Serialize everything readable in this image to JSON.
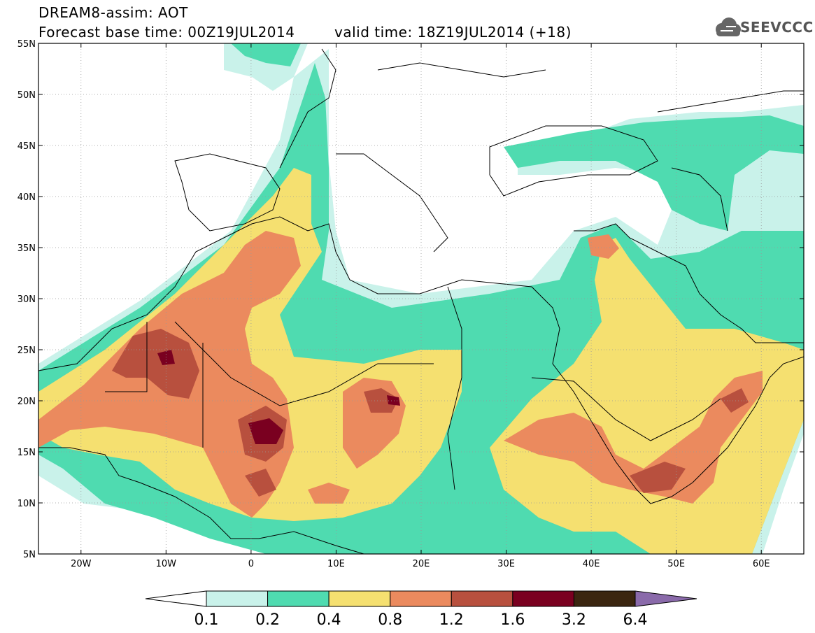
{
  "title": {
    "line1": "DREAM8-assim: AOT",
    "line2": "Forecast base time: 00Z19JUL2014",
    "valid": "valid time: 18Z19JUL2014 (+18)"
  },
  "logo": {
    "text": "SEEVCCC",
    "icon": "cloud-icon"
  },
  "axes": {
    "lat_labels": [
      "55N",
      "50N",
      "45N",
      "40N",
      "35N",
      "30N",
      "25N",
      "20N",
      "15N",
      "10N",
      "5N"
    ],
    "lon_labels": [
      "20W",
      "10W",
      "0",
      "10E",
      "20E",
      "30E",
      "40E",
      "50E",
      "60E"
    ],
    "lat_range": [
      5,
      55
    ],
    "lon_range": [
      -25,
      65
    ]
  },
  "colorbar": {
    "labels": [
      "0.1",
      "0.2",
      "0.4",
      "0.8",
      "1.2",
      "1.6",
      "3.2",
      "6.4"
    ],
    "colors": [
      "#ffffff",
      "#c9f2ea",
      "#4fdbb0",
      "#f5e070",
      "#eb8a5e",
      "#b8503e",
      "#7a0020",
      "#3b2610",
      "#8a6aaa"
    ]
  }
}
